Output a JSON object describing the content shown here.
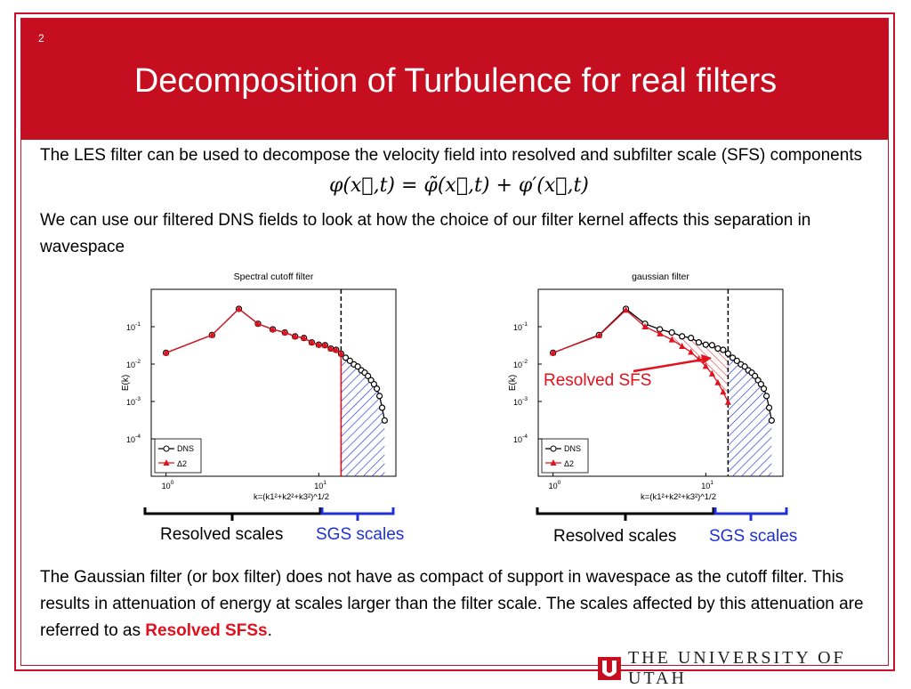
{
  "slide": {
    "number": "2",
    "title": "Decomposition of Turbulence for real filters",
    "intro_text": "The LES filter can be used to decompose the velocity field into resolved and subfilter scale (SFS) components",
    "equation": "φ(x⃗,t) = φ̃(x⃗,t) + φ′(x⃗,t)",
    "filter_text": "We can use our filtered DNS fields to look at how the choice of our filter kernel affects this separation in wavespace",
    "conclusion_text_pre": "The Gaussian filter (or box filter) does not have as compact of support in wavespace as the cutoff filter.  This results in attenuation of energy at scales larger than the filter scale.  The scales affected by this attenuation are referred to as ",
    "conclusion_highlight": "Resolved SFSs",
    "conclusion_text_post": ".",
    "resolved_scales_label": "Resolved scales",
    "sgs_scales_label": "SGS scales",
    "resolved_sfs_label": "Resolved SFS",
    "university": "THE UNIVERSITY OF UTAH",
    "colors": {
      "brand_red": "#c50e1f",
      "highlight_red": "#e3101e",
      "sgs_blue": "#2031d6"
    }
  },
  "chart_data": [
    {
      "type": "line",
      "title": "Spectral cutoff filter",
      "xlabel": "k=(k1²+k2²+k3²)^1/2",
      "ylabel": "E(k)",
      "x_scale": "log",
      "y_scale": "log",
      "ylim": [
        1e-05,
        1
      ],
      "yticks": [
        "10^-1",
        "10^-2",
        "10^-3",
        "10^-4"
      ],
      "xticks": [
        "10^0",
        "10^1"
      ],
      "legend": [
        "DNS",
        "Δ2"
      ],
      "legend_position": "bottom-left",
      "cutoff_k": 14,
      "series": [
        {
          "name": "DNS",
          "color": "#000000",
          "marker": "circle",
          "x": [
            1,
            2,
            3,
            4,
            5,
            6,
            7,
            8,
            9,
            10,
            11,
            12,
            13,
            14,
            15,
            16,
            17,
            18,
            19,
            20,
            21,
            22,
            23,
            24,
            25,
            26,
            27
          ],
          "y": [
            0.02,
            0.06,
            0.3,
            0.12,
            0.085,
            0.07,
            0.055,
            0.05,
            0.038,
            0.033,
            0.032,
            0.026,
            0.024,
            0.019,
            0.0148,
            0.0122,
            0.0098,
            0.0086,
            0.0068,
            0.0059,
            0.0048,
            0.0037,
            0.0029,
            0.0022,
            0.0014,
            0.00068,
            0.00031
          ]
        },
        {
          "name": "Δ2",
          "color": "#e3101e",
          "marker": "triangle",
          "x": [
            1,
            2,
            3,
            4,
            5,
            6,
            7,
            8,
            9,
            10,
            11,
            12,
            13,
            14
          ],
          "y": [
            0.02,
            0.06,
            0.3,
            0.12,
            0.085,
            0.07,
            0.055,
            0.05,
            0.038,
            0.033,
            0.032,
            0.026,
            0.024,
            0.019
          ]
        }
      ]
    },
    {
      "type": "line",
      "title": "gaussian filter",
      "xlabel": "k=(k1²+k2²+k3²)^1/2",
      "ylabel": "E(k)",
      "x_scale": "log",
      "y_scale": "log",
      "ylim": [
        1e-05,
        1
      ],
      "yticks": [
        "10^-1",
        "10^-2",
        "10^-3",
        "10^-4"
      ],
      "xticks": [
        "10^0",
        "10^1"
      ],
      "legend": [
        "DNS",
        "Δ2"
      ],
      "legend_position": "bottom-left",
      "cutoff_k": 14,
      "series": [
        {
          "name": "DNS",
          "color": "#000000",
          "marker": "circle",
          "x": [
            1,
            2,
            3,
            4,
            5,
            6,
            7,
            8,
            9,
            10,
            11,
            12,
            13,
            14,
            15,
            16,
            17,
            18,
            19,
            20,
            21,
            22,
            23,
            24,
            25,
            26,
            27
          ],
          "y": [
            0.02,
            0.06,
            0.3,
            0.12,
            0.085,
            0.07,
            0.055,
            0.05,
            0.038,
            0.033,
            0.032,
            0.026,
            0.024,
            0.019,
            0.0148,
            0.0122,
            0.0098,
            0.0086,
            0.0068,
            0.0059,
            0.0048,
            0.0037,
            0.0029,
            0.0022,
            0.0014,
            0.00068,
            0.00031
          ]
        },
        {
          "name": "Δ2",
          "color": "#e3101e",
          "marker": "triangle",
          "x": [
            1,
            2,
            3,
            4,
            5,
            6,
            7,
            8,
            9,
            10,
            11,
            12,
            13,
            14
          ],
          "y": [
            0.02,
            0.058,
            0.28,
            0.1,
            0.065,
            0.045,
            0.03,
            0.021,
            0.0135,
            0.0088,
            0.0055,
            0.0032,
            0.0018,
            0.00095
          ]
        }
      ]
    }
  ]
}
